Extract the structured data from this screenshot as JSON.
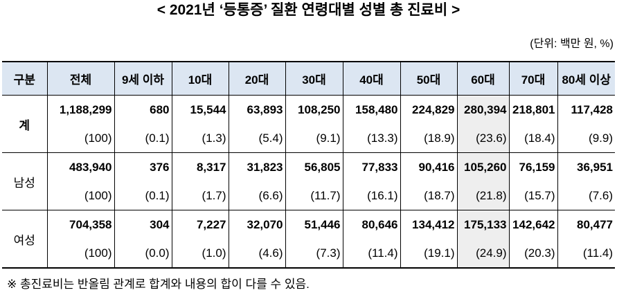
{
  "title": "< 2021년 ‘등통증’ 질환 연령대별 성별 총 진료비 >",
  "unit": "(단위: 백만 원, %)",
  "table": {
    "headers": [
      "구분",
      "전체",
      "9세 이하",
      "10대",
      "20대",
      "30대",
      "40대",
      "50대",
      "60대",
      "70대",
      "80세 이상"
    ],
    "groups": [
      {
        "label": "계",
        "values": [
          "1,188,299",
          "680",
          "15,544",
          "63,893",
          "108,250",
          "158,480",
          "224,829",
          "280,394",
          "218,801",
          "117,428"
        ],
        "shares": [
          "(100)",
          "(0.1)",
          "(1.3)",
          "(5.4)",
          "(9.1)",
          "(13.3)",
          "(18.9)",
          "(23.6)",
          "(18.4)",
          "(9.9)"
        ]
      },
      {
        "label": "남성",
        "values": [
          "483,940",
          "376",
          "8,317",
          "31,823",
          "56,805",
          "77,833",
          "90,416",
          "105,260",
          "76,159",
          "36,951"
        ],
        "shares": [
          "(100)",
          "(0.1)",
          "(1.7)",
          "(6.6)",
          "(11.7)",
          "(16.1)",
          "(18.7)",
          "(21.8)",
          "(15.7)",
          "(7.6)"
        ]
      },
      {
        "label": "여성",
        "values": [
          "704,358",
          "304",
          "7,227",
          "32,070",
          "51,446",
          "80,646",
          "134,412",
          "175,133",
          "142,642",
          "80,477"
        ],
        "shares": [
          "(100)",
          "(0.0)",
          "(1.0)",
          "(4.6)",
          "(7.3)",
          "(11.4)",
          "(19.1)",
          "(24.9)",
          "(20.3)",
          "(11.4)"
        ]
      }
    ],
    "highlighted_column": "60대"
  },
  "footnote": "※ 총진료비는 반올림 관계로 합계와 내용의 합이 다를 수 있음.",
  "colors": {
    "header_bg": "#dce6f2",
    "highlight_bg": "#eeeeee",
    "line": "#000000",
    "text": "#000000"
  }
}
